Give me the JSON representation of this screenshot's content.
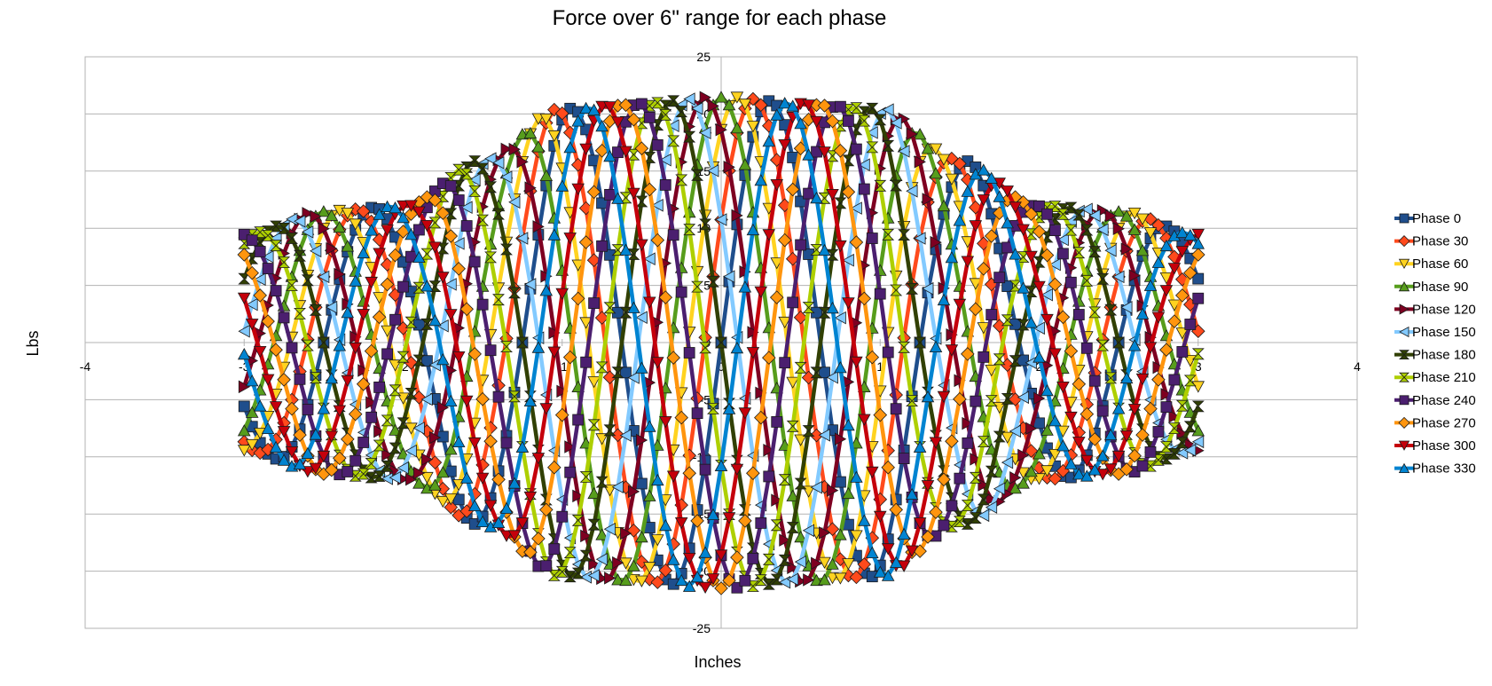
{
  "chart_data": {
    "type": "line",
    "title": "Force over 6\" range for each phase",
    "xlabel": "Inches",
    "ylabel": "Lbs",
    "xlim": [
      -4,
      4
    ],
    "ylim": [
      -25,
      25
    ],
    "x_ticks": [
      "-4",
      "-3",
      "-2",
      "-1",
      "0",
      "1",
      "2",
      "3",
      "4"
    ],
    "y_ticks": [
      "-25",
      "-20",
      "-15",
      "-10",
      "-5",
      "0",
      "5",
      "10",
      "15",
      "20",
      "25"
    ],
    "grid": true,
    "legend_position": "right",
    "x_range": [
      -3,
      3
    ],
    "sample_step": 0.05,
    "model": "amplitude(x) * sin(2*pi*x/1.25 + phase)",
    "amplitude_envelope": {
      "x": [
        -3,
        -2.5,
        -2,
        -1.5,
        -1,
        -0.5,
        0,
        0.5,
        1,
        1.5,
        2,
        2.5,
        3
      ],
      "y": [
        9.5,
        11.5,
        12,
        16,
        20.5,
        21,
        21.5,
        21,
        20.5,
        16,
        12,
        11.5,
        9.5
      ]
    },
    "series": [
      {
        "name": "Phase 0",
        "phase_deg": 0,
        "color": "#1f4e8c",
        "marker": "square"
      },
      {
        "name": "Phase 30",
        "phase_deg": 30,
        "color": "#ff4a1c",
        "marker": "diamond"
      },
      {
        "name": "Phase 60",
        "phase_deg": 60,
        "color": "#ffd320",
        "marker": "triangle-down"
      },
      {
        "name": "Phase 90",
        "phase_deg": 90,
        "color": "#579d1c",
        "marker": "triangle-up"
      },
      {
        "name": "Phase 120",
        "phase_deg": 120,
        "color": "#7e0021",
        "marker": "triangle-right"
      },
      {
        "name": "Phase 150",
        "phase_deg": 150,
        "color": "#83caff",
        "marker": "triangle-left"
      },
      {
        "name": "Phase 180",
        "phase_deg": 180,
        "color": "#314004",
        "marker": "bowtie-h"
      },
      {
        "name": "Phase 210",
        "phase_deg": 210,
        "color": "#aecf00",
        "marker": "bowtie-v"
      },
      {
        "name": "Phase 240",
        "phase_deg": 240,
        "color": "#4b1f6f",
        "marker": "square"
      },
      {
        "name": "Phase 270",
        "phase_deg": 270,
        "color": "#ff950e",
        "marker": "diamond"
      },
      {
        "name": "Phase 300",
        "phase_deg": 300,
        "color": "#c5000b",
        "marker": "triangle-down"
      },
      {
        "name": "Phase 330",
        "phase_deg": 330,
        "color": "#0084d1",
        "marker": "triangle-up"
      }
    ]
  }
}
